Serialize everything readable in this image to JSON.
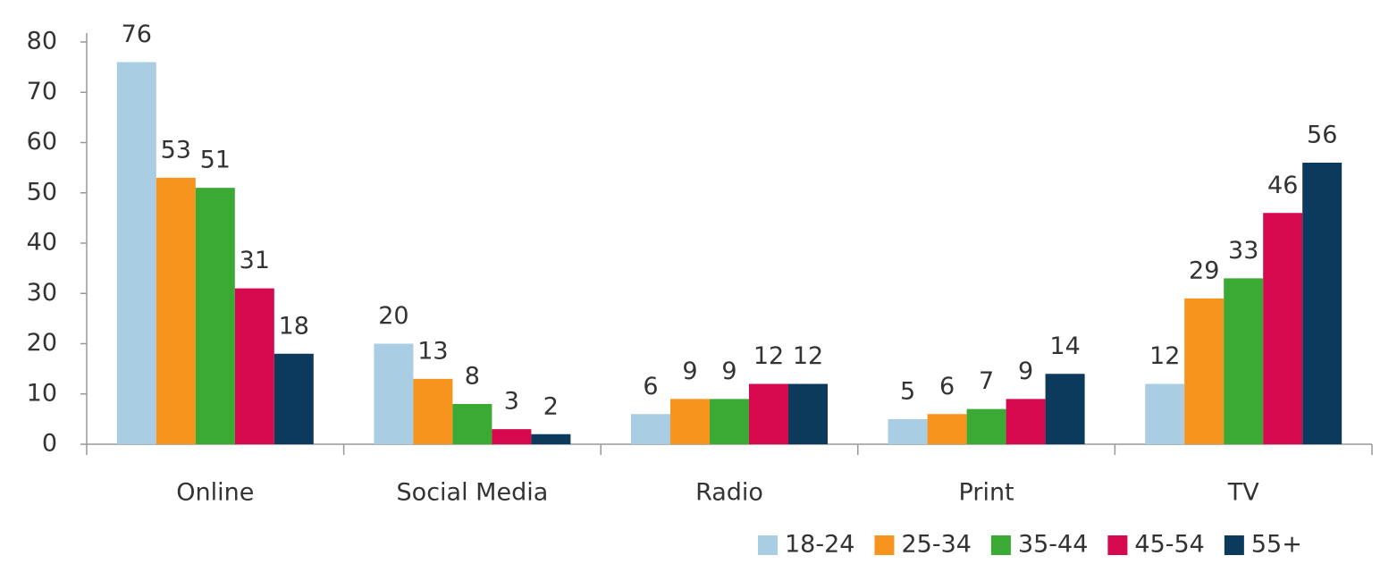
{
  "chart_data": {
    "type": "bar",
    "categories": [
      "Online",
      "Social Media",
      "Radio",
      "Print",
      "TV"
    ],
    "series": [
      {
        "name": "18-24",
        "color": "#a9cde2",
        "values": [
          76,
          20,
          6,
          5,
          12
        ]
      },
      {
        "name": "25-34",
        "color": "#f7941d",
        "values": [
          53,
          13,
          9,
          6,
          29
        ]
      },
      {
        "name": "35-44",
        "color": "#3aaa35",
        "values": [
          51,
          8,
          9,
          7,
          33
        ]
      },
      {
        "name": "45-54",
        "color": "#d6094f",
        "values": [
          31,
          3,
          12,
          9,
          46
        ]
      },
      {
        "name": "55+",
        "color": "#0b3a5c",
        "values": [
          18,
          2,
          12,
          14,
          56
        ]
      }
    ],
    "ylim": [
      0,
      80
    ],
    "yticks": [
      0,
      10,
      20,
      30,
      40,
      50,
      60,
      70,
      80
    ],
    "grid": false,
    "legend": "bottom-right"
  }
}
